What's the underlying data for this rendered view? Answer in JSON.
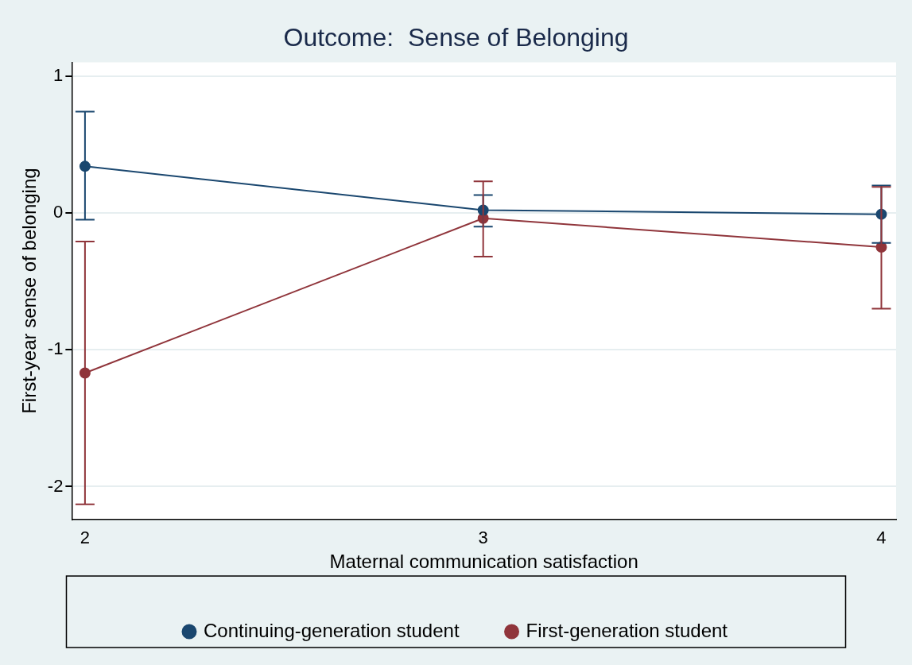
{
  "chart_data": {
    "type": "line",
    "title": "Outcome:  Sense of Belonging",
    "xlabel": "Maternal communication satisfaction",
    "ylabel": "First-year sense of belonging",
    "x": [
      2,
      3,
      4
    ],
    "series": [
      {
        "name": "Continuing-generation student",
        "color": "#1a476f",
        "values": [
          0.34,
          0.02,
          -0.01
        ],
        "errors": [
          [
            -0.05,
            0.74
          ],
          [
            -0.1,
            0.13
          ],
          [
            -0.22,
            0.2
          ]
        ]
      },
      {
        "name": "First-generation student",
        "color": "#90353b",
        "values": [
          -1.17,
          -0.04,
          -0.25
        ],
        "errors": [
          [
            -2.13,
            -0.21
          ],
          [
            -0.32,
            0.23
          ],
          [
            -0.7,
            0.19
          ]
        ]
      }
    ],
    "xlim": [
      1.967,
      4.037
    ],
    "xticks": [
      2,
      3,
      4
    ],
    "ylim": [
      -2.24,
      1.1
    ],
    "yticks": [
      -2,
      -1,
      0,
      1
    ],
    "grid": "y",
    "legend": "bottom",
    "marker": "circle",
    "line_style": "solid"
  }
}
